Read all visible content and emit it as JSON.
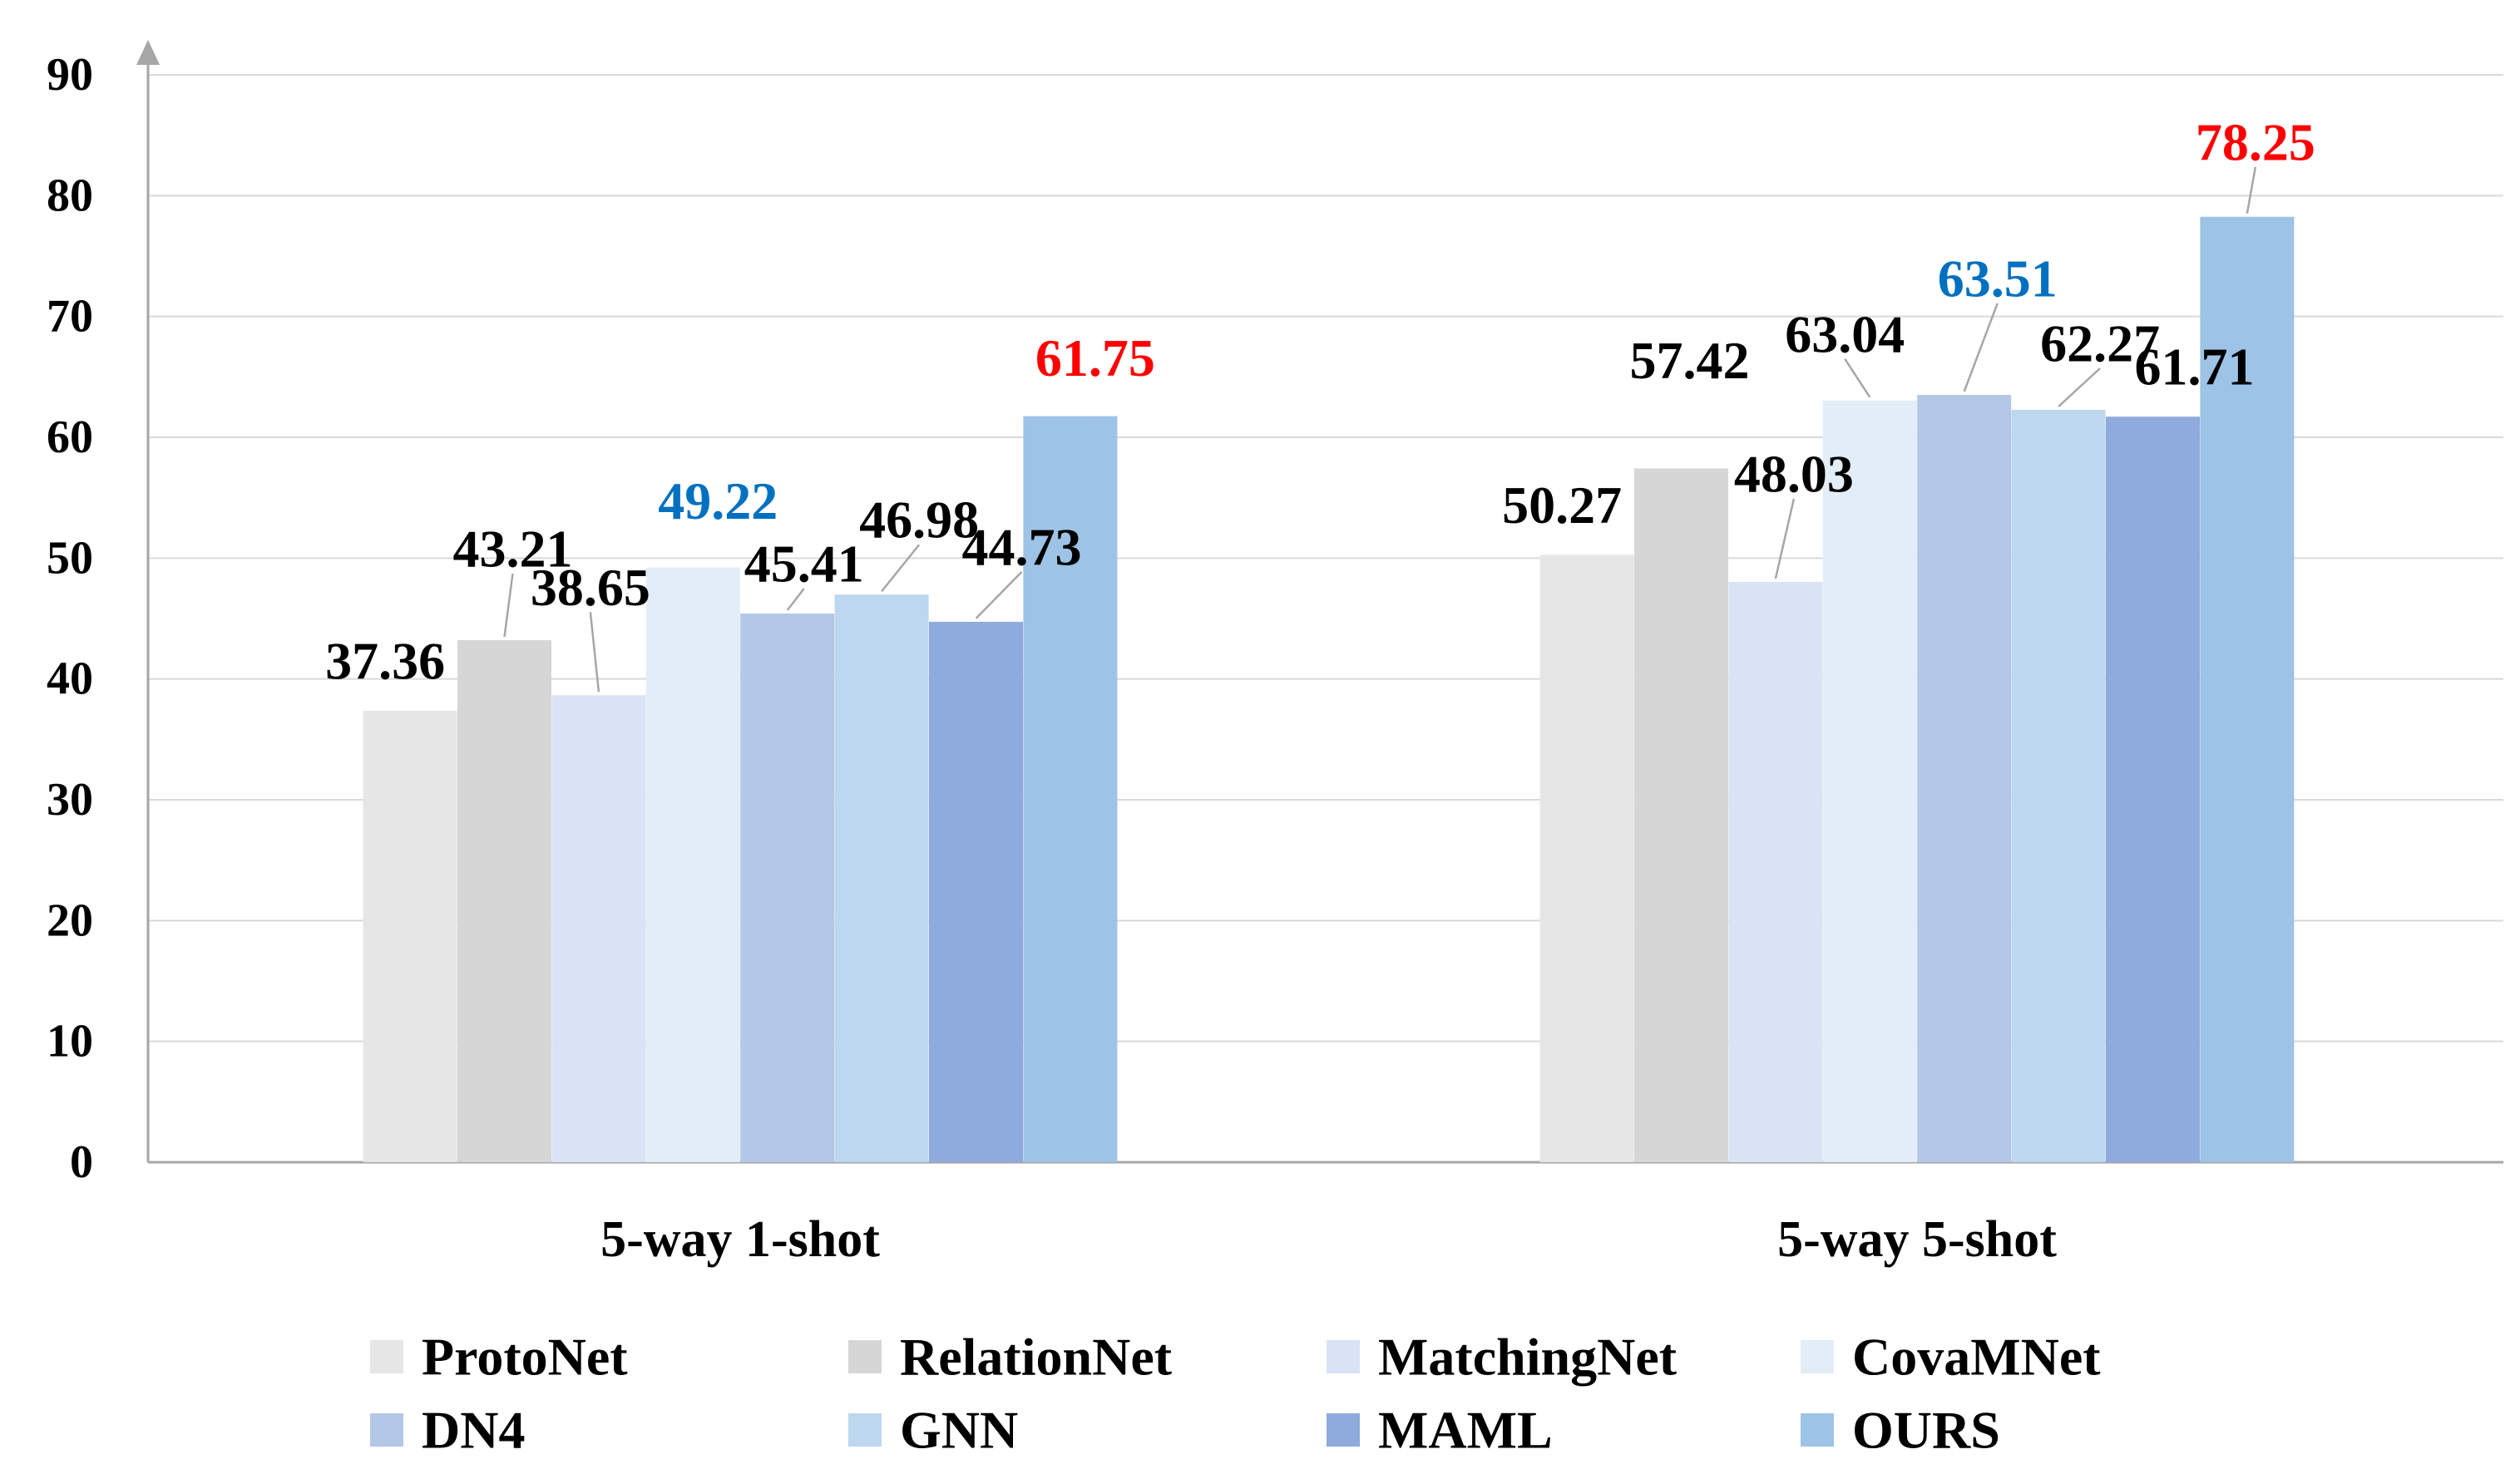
{
  "chart_data": {
    "type": "bar",
    "title": "",
    "xlabel": "",
    "ylabel": "",
    "ylim": [
      0,
      90
    ],
    "yticks": [
      0,
      10,
      20,
      30,
      40,
      50,
      60,
      70,
      80,
      90
    ],
    "grid": true,
    "legend_position": "bottom",
    "categories": [
      "5-way 1-shot",
      "5-way 5-shot"
    ],
    "series": [
      {
        "name": "ProtoNet",
        "values": [
          37.36,
          50.27
        ],
        "color": "#E6E6E6"
      },
      {
        "name": "RelationNet",
        "values": [
          43.21,
          57.42
        ],
        "color": "#D6D6D6"
      },
      {
        "name": "MatchingNet",
        "values": [
          38.65,
          48.03
        ],
        "color": "#DAE3F3"
      },
      {
        "name": "CovaMNet",
        "values": [
          49.22,
          63.04
        ],
        "color": "#E3EDF8"
      },
      {
        "name": "DN4",
        "values": [
          45.41,
          63.51
        ],
        "color": "#B4C7E7"
      },
      {
        "name": "GNN",
        "values": [
          46.98,
          62.27
        ],
        "color": "#BDD7EE"
      },
      {
        "name": "MAML",
        "values": [
          44.73,
          61.71
        ],
        "color": "#8FAADC"
      },
      {
        "name": "OURS",
        "values": [
          61.75,
          78.25
        ],
        "color": "#9DC3E6"
      }
    ],
    "data_labels": [
      [
        "37.36",
        "50.27"
      ],
      [
        "43.21",
        "57.42"
      ],
      [
        "38.65",
        "48.03"
      ],
      [
        "49.22",
        "63.04"
      ],
      [
        "45.41",
        "63.51"
      ],
      [
        "46.98",
        "62.27"
      ],
      [
        "44.73",
        "61.71"
      ],
      [
        "61.75",
        "78.25"
      ]
    ],
    "label_colors": [
      [
        "#000000",
        "#000000"
      ],
      [
        "#000000",
        "#000000"
      ],
      [
        "#000000",
        "#000000"
      ],
      [
        "#0070C0",
        "#000000"
      ],
      [
        "#000000",
        "#0070C0"
      ],
      [
        "#000000",
        "#000000"
      ],
      [
        "#000000",
        "#000000"
      ],
      [
        "#FF0000",
        "#FF0000"
      ]
    ],
    "colors": {
      "grid": "#D9D9D9",
      "axis": "#A6A6A6",
      "text": "#000000",
      "best": "#FF0000",
      "second": "#0070C0",
      "leader": "#A6A6A6"
    }
  }
}
